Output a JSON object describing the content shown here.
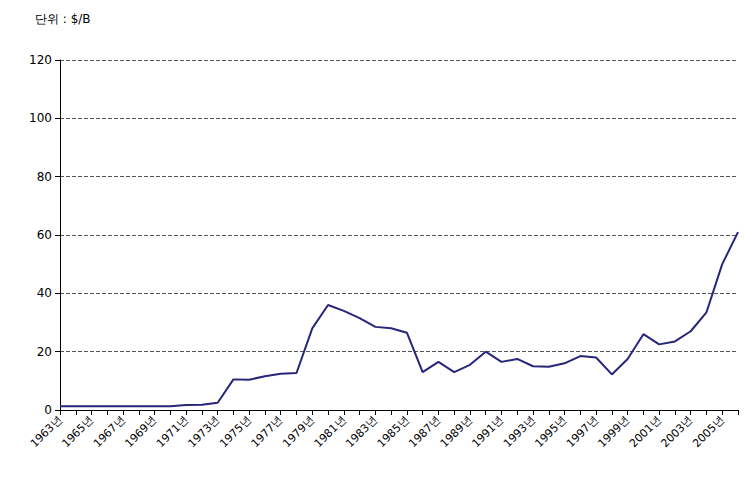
{
  "chart_data": {
    "type": "line",
    "title": "단위 : $/B",
    "categories": [
      "1963년",
      null,
      "1965년",
      null,
      "1967년",
      null,
      "1969년",
      null,
      "1971년",
      null,
      "1973년",
      null,
      "1975년",
      null,
      "1977년",
      null,
      "1979년",
      null,
      "1981년",
      null,
      "1983년",
      null,
      "1985년",
      null,
      "1987년",
      null,
      "1989년",
      null,
      "1991년",
      null,
      "1993년",
      null,
      "1995년",
      null,
      "1997년",
      null,
      "1999년",
      null,
      "2001년",
      null,
      "2003년",
      null,
      "2005년",
      null
    ],
    "values": [
      1.3,
      1.3,
      1.3,
      1.3,
      1.3,
      1.3,
      1.3,
      1.3,
      1.7,
      1.8,
      2.5,
      10.5,
      10.4,
      11.6,
      12.4,
      12.7,
      28,
      36,
      34,
      31.5,
      28.5,
      28,
      26.5,
      13,
      16.5,
      13,
      15.5,
      20,
      16.5,
      17.5,
      15,
      14.8,
      16,
      18.5,
      18,
      12.2,
      17.5,
      26,
      22.5,
      23.5,
      27,
      33.5,
      50,
      61
    ],
    "color": "#26267a",
    "ylim": [
      0,
      120
    ],
    "yticks": [
      0,
      20,
      40,
      60,
      80,
      100,
      120
    ],
    "grid": true
  }
}
